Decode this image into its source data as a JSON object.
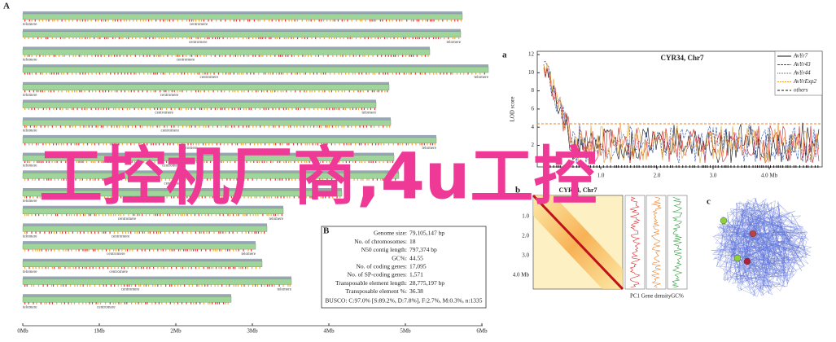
{
  "panel_A": {
    "label": "A",
    "centromere": "centromere",
    "telomere": "telomere",
    "axis_ticks": [
      "0Mb",
      "1Mb",
      "2Mb",
      "3Mb",
      "4Mb",
      "5Mb",
      "6Mb"
    ]
  },
  "panel_B": {
    "label": "B",
    "rows": [
      [
        "Genome size:",
        "79,105,147 bp"
      ],
      [
        "No. of chromosomes:",
        "18"
      ],
      [
        "N50 contig length:",
        "797,374 bp"
      ],
      [
        "GC%:",
        "44.55"
      ],
      [
        "No. of coding genes:",
        "17,095"
      ],
      [
        "No. of SP-coding genes:",
        "1,571"
      ],
      [
        "Transposable element length:",
        "28,775,197 bp"
      ],
      [
        "Transposable element %:",
        "36.38"
      ]
    ],
    "busco": "BUSCO: C:97.0% [S:89.2%, D:7.8%], F:2.7%, M:0.3%, n:1335"
  },
  "panel_a": {
    "label": "a",
    "title": "CYR34, Chr7",
    "y_label": "LOD score",
    "y_ticks": [
      "12",
      "10",
      "8",
      "6",
      "4",
      "2"
    ],
    "x_ticks": [
      "1.0",
      "2.0",
      "3.0",
      "4.0 Mb"
    ],
    "legend": [
      "AvYr7",
      "AvYr43",
      "AvYr44",
      "AvYrExp2",
      "others"
    ]
  },
  "panel_b": {
    "label": "b",
    "title": "CYR34, Chr7",
    "y_ticks": [
      "1.0",
      "2.0",
      "3.0",
      "4.0 Mb"
    ],
    "tracks": [
      "PC1",
      "Gene density",
      "GC%"
    ]
  },
  "panel_c": {
    "label": "c"
  },
  "watermark": "工控机厂商,4u工控"
}
